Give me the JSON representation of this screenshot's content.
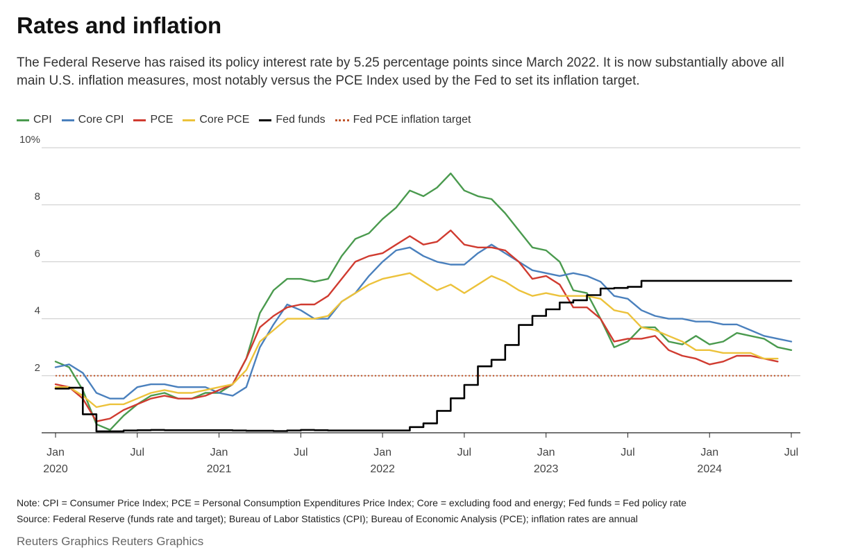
{
  "header": {
    "title": "Rates and inflation",
    "subtitle": "The Federal Reserve has raised its policy interest rate by 5.25 percentage points since March 2022. It is now substantially above all main U.S. inflation measures, most notably versus the PCE Index used by the Fed to set its inflation target."
  },
  "legend": [
    {
      "label": "CPI",
      "color": "#4a9a4e",
      "style": "solid"
    },
    {
      "label": "Core CPI",
      "color": "#4a80bd",
      "style": "solid"
    },
    {
      "label": "PCE",
      "color": "#d03b30",
      "style": "solid"
    },
    {
      "label": "Core PCE",
      "color": "#ecc23b",
      "style": "solid"
    },
    {
      "label": "Fed funds",
      "color": "#000000",
      "style": "solid"
    },
    {
      "label": "Fed PCE inflation target",
      "color": "#c0552a",
      "style": "dotted"
    }
  ],
  "chart_data": {
    "type": "line",
    "x_unit": "month",
    "x_start": "2020-01",
    "x_end": "2024-07",
    "ylim": [
      0,
      10
    ],
    "y_ticks": [
      {
        "value": 10,
        "label": "10%"
      },
      {
        "value": 8,
        "label": "8"
      },
      {
        "value": 6,
        "label": "6"
      },
      {
        "value": 4,
        "label": "4"
      },
      {
        "value": 2,
        "label": "2"
      }
    ],
    "x_ticks": [
      {
        "month": "2020-01",
        "label": "Jan",
        "year": "2020"
      },
      {
        "month": "2020-07",
        "label": "Jul",
        "year": ""
      },
      {
        "month": "2021-01",
        "label": "Jan",
        "year": "2021"
      },
      {
        "month": "2021-07",
        "label": "Jul",
        "year": ""
      },
      {
        "month": "2022-01",
        "label": "Jan",
        "year": "2022"
      },
      {
        "month": "2022-07",
        "label": "Jul",
        "year": ""
      },
      {
        "month": "2023-01",
        "label": "Jan",
        "year": "2023"
      },
      {
        "month": "2023-07",
        "label": "Jul",
        "year": ""
      },
      {
        "month": "2024-01",
        "label": "Jan",
        "year": "2024"
      },
      {
        "month": "2024-07",
        "label": "Jul",
        "year": ""
      }
    ],
    "grid": true,
    "target": {
      "name": "Fed PCE inflation target",
      "value": 2.0
    },
    "series": [
      {
        "name": "CPI",
        "color": "#4a9a4e",
        "style": "line",
        "values": [
          2.5,
          2.3,
          1.5,
          0.3,
          0.1,
          0.6,
          1.0,
          1.3,
          1.4,
          1.2,
          1.2,
          1.4,
          1.4,
          1.7,
          2.6,
          4.2,
          5.0,
          5.4,
          5.4,
          5.3,
          5.4,
          6.2,
          6.8,
          7.0,
          7.5,
          7.9,
          8.5,
          8.3,
          8.6,
          9.1,
          8.5,
          8.3,
          8.2,
          7.7,
          7.1,
          6.5,
          6.4,
          6.0,
          5.0,
          4.9,
          4.0,
          3.0,
          3.2,
          3.7,
          3.7,
          3.2,
          3.1,
          3.4,
          3.1,
          3.2,
          3.5,
          3.4,
          3.3,
          3.0,
          2.9
        ]
      },
      {
        "name": "Core CPI",
        "color": "#4a80bd",
        "style": "line",
        "values": [
          2.3,
          2.4,
          2.1,
          1.4,
          1.2,
          1.2,
          1.6,
          1.7,
          1.7,
          1.6,
          1.6,
          1.6,
          1.4,
          1.3,
          1.6,
          3.0,
          3.8,
          4.5,
          4.3,
          4.0,
          4.0,
          4.6,
          4.9,
          5.5,
          6.0,
          6.4,
          6.5,
          6.2,
          6.0,
          5.9,
          5.9,
          6.3,
          6.6,
          6.3,
          6.0,
          5.7,
          5.6,
          5.5,
          5.6,
          5.5,
          5.3,
          4.8,
          4.7,
          4.3,
          4.1,
          4.0,
          4.0,
          3.9,
          3.9,
          3.8,
          3.8,
          3.6,
          3.4,
          3.3,
          3.2
        ]
      },
      {
        "name": "PCE",
        "color": "#d03b30",
        "style": "line",
        "values": [
          1.7,
          1.6,
          1.2,
          0.4,
          0.5,
          0.8,
          1.0,
          1.2,
          1.3,
          1.2,
          1.2,
          1.3,
          1.5,
          1.7,
          2.6,
          3.7,
          4.1,
          4.4,
          4.5,
          4.5,
          4.8,
          5.4,
          6.0,
          6.2,
          6.3,
          6.6,
          6.9,
          6.6,
          6.7,
          7.1,
          6.6,
          6.5,
          6.5,
          6.4,
          6.0,
          5.4,
          5.5,
          5.2,
          4.4,
          4.4,
          4.0,
          3.2,
          3.3,
          3.3,
          3.4,
          2.9,
          2.7,
          2.6,
          2.4,
          2.5,
          2.7,
          2.7,
          2.6,
          2.5
        ]
      },
      {
        "name": "Core PCE",
        "color": "#ecc23b",
        "style": "line",
        "values": [
          1.6,
          1.6,
          1.3,
          0.9,
          1.0,
          1.0,
          1.2,
          1.4,
          1.5,
          1.4,
          1.4,
          1.5,
          1.6,
          1.7,
          2.2,
          3.2,
          3.6,
          4.0,
          4.0,
          4.0,
          4.1,
          4.6,
          4.9,
          5.2,
          5.4,
          5.5,
          5.6,
          5.3,
          5.0,
          5.2,
          4.9,
          5.2,
          5.5,
          5.3,
          5.0,
          4.8,
          4.9,
          4.8,
          4.8,
          4.8,
          4.7,
          4.3,
          4.2,
          3.7,
          3.6,
          3.4,
          3.2,
          2.9,
          2.9,
          2.8,
          2.8,
          2.8,
          2.6,
          2.6
        ]
      },
      {
        "name": "Fed funds",
        "color": "#000000",
        "style": "step",
        "values": [
          1.55,
          1.58,
          0.65,
          0.05,
          0.05,
          0.08,
          0.09,
          0.1,
          0.09,
          0.09,
          0.09,
          0.09,
          0.09,
          0.08,
          0.07,
          0.07,
          0.06,
          0.08,
          0.1,
          0.09,
          0.08,
          0.08,
          0.08,
          0.08,
          0.08,
          0.08,
          0.2,
          0.33,
          0.77,
          1.21,
          1.68,
          2.33,
          2.56,
          3.08,
          3.78,
          4.1,
          4.33,
          4.57,
          4.65,
          4.83,
          5.06,
          5.08,
          5.12,
          5.33,
          5.33,
          5.33,
          5.33,
          5.33,
          5.33,
          5.33,
          5.33,
          5.33,
          5.33,
          5.33,
          5.33
        ]
      }
    ]
  },
  "footer": {
    "note": "Note: CPI = Consumer Price Index; PCE = Personal Consumption Expenditures Price Index; Core = excluding food and energy; Fed funds = Fed policy rate",
    "source": "Source: Federal Reserve (funds rate and target); Bureau of Labor Statistics (CPI); Bureau of Economic Analysis (PCE); inflation rates are annual",
    "credit": "Reuters Graphics Reuters Graphics"
  }
}
